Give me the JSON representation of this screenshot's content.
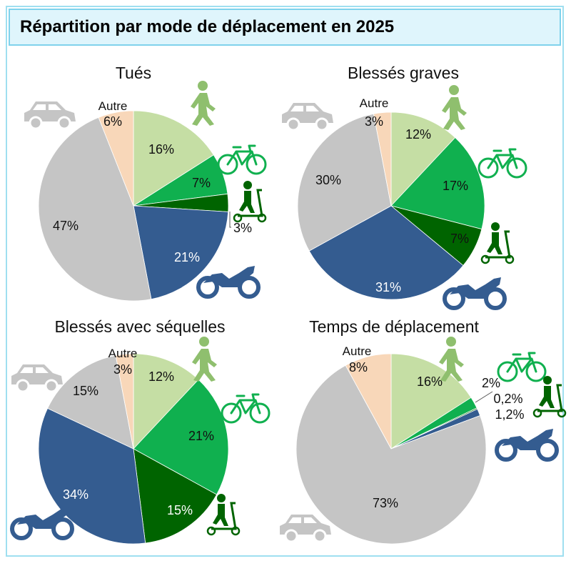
{
  "title": "Répartition par mode de déplacement en 2025",
  "colors": {
    "pieton": "#c5dea4",
    "velo": "#10b04f",
    "edp": "#006400",
    "deux_roues_motorises": "#345c90",
    "voiture": "#c5c5c5",
    "autre": "#f8d7b9",
    "icon_green": "#8fbf6e",
    "icon_velo": "#10b04f",
    "icon_edp": "#006400",
    "icon_moto": "#345c90",
    "icon_car": "#c5c5c5"
  },
  "icons": [
    "pedestrian-icon",
    "bicycle-icon",
    "scooter-icon",
    "motorcycle-icon",
    "car-icon"
  ],
  "chart_data": [
    {
      "type": "pie",
      "title": "Tués",
      "slices": [
        {
          "label": "",
          "value": 16,
          "text": "16%",
          "color_key": "pieton"
        },
        {
          "label": "",
          "value": 7,
          "text": "7%",
          "color_key": "velo"
        },
        {
          "label": "",
          "value": 3,
          "text": "3%",
          "color_key": "edp"
        },
        {
          "label": "",
          "value": 21,
          "text": "21%",
          "color_key": "deux_roues_motorises"
        },
        {
          "label": "",
          "value": 47,
          "text": "47%",
          "color_key": "voiture"
        },
        {
          "label": "Autre",
          "value": 6,
          "text": "6%",
          "color_key": "autre"
        }
      ]
    },
    {
      "type": "pie",
      "title": "Blessés graves",
      "slices": [
        {
          "label": "",
          "value": 12,
          "text": "12%",
          "color_key": "pieton"
        },
        {
          "label": "",
          "value": 17,
          "text": "17%",
          "color_key": "velo"
        },
        {
          "label": "",
          "value": 7,
          "text": "7%",
          "color_key": "edp"
        },
        {
          "label": "",
          "value": 31,
          "text": "31%",
          "color_key": "deux_roues_motorises"
        },
        {
          "label": "",
          "value": 30,
          "text": "30%",
          "color_key": "voiture"
        },
        {
          "label": "Autre",
          "value": 3,
          "text": "3%",
          "color_key": "autre"
        }
      ]
    },
    {
      "type": "pie",
      "title": "Blessés avec séquelles",
      "slices": [
        {
          "label": "",
          "value": 12,
          "text": "12%",
          "color_key": "pieton"
        },
        {
          "label": "",
          "value": 21,
          "text": "21%",
          "color_key": "velo"
        },
        {
          "label": "",
          "value": 15,
          "text": "15%",
          "color_key": "edp"
        },
        {
          "label": "",
          "value": 34,
          "text": "34%",
          "color_key": "deux_roues_motorises"
        },
        {
          "label": "",
          "value": 15,
          "text": "15%",
          "color_key": "voiture"
        },
        {
          "label": "Autre",
          "value": 3,
          "text": "3%",
          "color_key": "autre"
        }
      ]
    },
    {
      "type": "pie",
      "title": "Temps de déplacement",
      "slices": [
        {
          "label": "",
          "value": 16,
          "text": "16%",
          "color_key": "pieton"
        },
        {
          "label": "",
          "value": 2,
          "text": "2%",
          "color_key": "velo"
        },
        {
          "label": "",
          "value": 0.2,
          "text": "0,2%",
          "color_key": "edp"
        },
        {
          "label": "",
          "value": 1.2,
          "text": "1,2%",
          "color_key": "deux_roues_motorises"
        },
        {
          "label": "",
          "value": 73,
          "text": "73%",
          "color_key": "voiture"
        },
        {
          "label": "Autre",
          "value": 8,
          "text": "8%",
          "color_key": "autre"
        }
      ]
    }
  ]
}
